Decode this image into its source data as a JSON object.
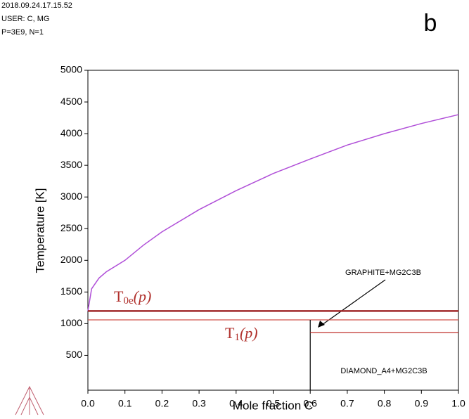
{
  "header": [
    "2018.09.24.17.15.52",
    "USER: C, MG",
    "P=3E9, N=1"
  ],
  "panel_label": "b",
  "chart_data": {
    "type": "line",
    "x_label": "Mole fraction C",
    "y_label": "Temperature [K]",
    "xlim": [
      0,
      1
    ],
    "ylim": [
      -50,
      5000
    ],
    "xticks": [
      {
        "value": 0,
        "label": "0.0"
      },
      0.1,
      0.2,
      0.3,
      0.4,
      0.5,
      0.6,
      0.7,
      0.8,
      0.9,
      {
        "value": 1,
        "label": "1.0"
      }
    ],
    "yticks": [
      500,
      1000,
      1500,
      2000,
      2500,
      3000,
      3500,
      4000,
      4500,
      5000
    ],
    "series": [
      {
        "color": "#b04fd8",
        "x": [
          0,
          0.01,
          0.03,
          0.05,
          0.1,
          0.15,
          0.2,
          0.3,
          0.4,
          0.5,
          0.6,
          0.7,
          0.8,
          0.9,
          1.0
        ],
        "values": [
          1200,
          1550,
          1720,
          1820,
          2000,
          2240,
          2450,
          2800,
          3100,
          3370,
          3600,
          3820,
          4000,
          4160,
          4300
        ]
      },
      {
        "color": "#a0282a",
        "width": 2.5,
        "x": [
          0,
          1
        ],
        "values": [
          1200,
          1200
        ]
      },
      {
        "color": "#d0504a",
        "width": 1.3,
        "x": [
          0,
          1
        ],
        "values": [
          1060,
          1060
        ]
      },
      {
        "color": "#000000",
        "width": 1.2,
        "x": [
          0.6,
          0.6
        ],
        "values": [
          1060,
          -50
        ]
      },
      {
        "color": "#c0302c",
        "width": 1.3,
        "x": [
          0.6,
          1
        ],
        "values": [
          860,
          860
        ]
      }
    ],
    "annotations": [
      {
        "label": "T",
        "sub": "0e",
        "arg": "(p)",
        "color": "#b0302c"
      },
      {
        "label": "T",
        "sub": "1",
        "arg": "(p)",
        "color": "#b0302c"
      },
      {
        "text": "GRAPHITE+MG2C3B"
      },
      {
        "text": "DIAMOND_A4+MG2C3B"
      }
    ]
  }
}
